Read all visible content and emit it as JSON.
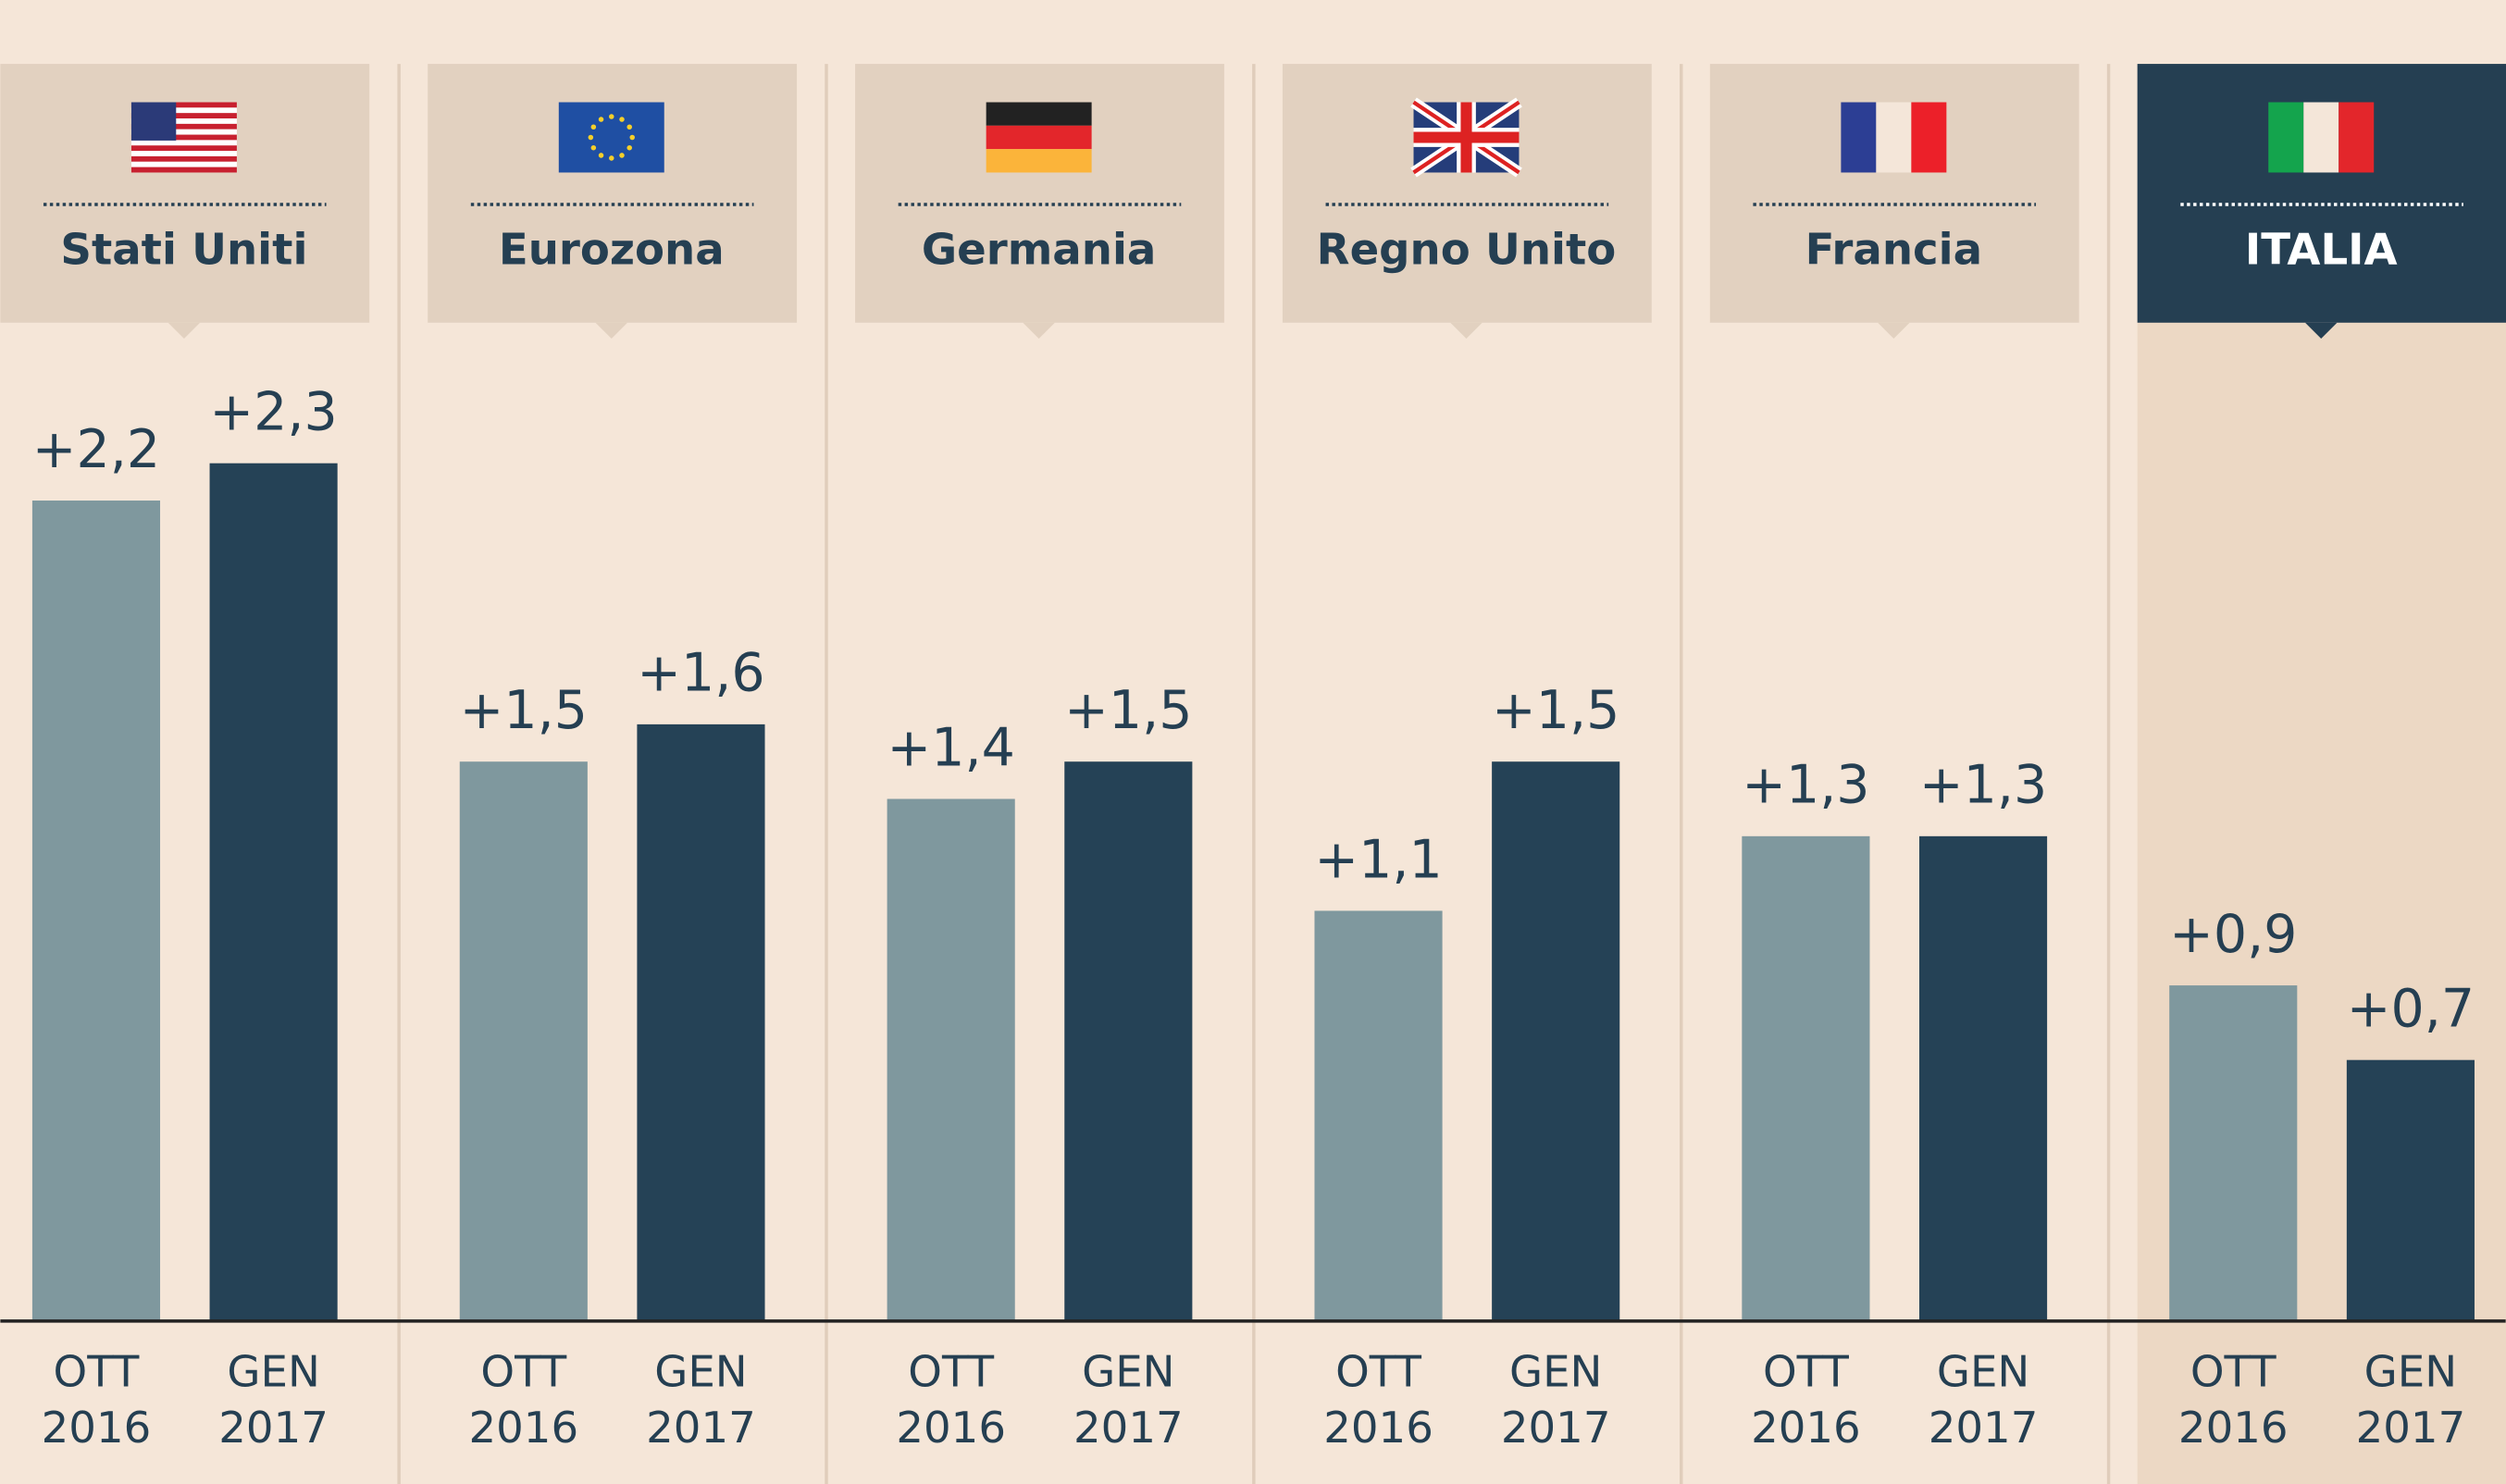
{
  "chart_data": {
    "type": "grouped-bar",
    "categories": [
      "Stati Uniti",
      "Eurozona",
      "Germania",
      "Regno Unito",
      "Francia",
      "ITALIA"
    ],
    "highlight_category": "ITALIA",
    "series": [
      {
        "name": "OTT 2016",
        "color": "#7f989e",
        "values": [
          2.2,
          1.5,
          1.4,
          1.1,
          1.3,
          0.9
        ],
        "value_labels": [
          "+2,2",
          "+1,5",
          "+1,4",
          "+1,1",
          "+1,3",
          "+0,9"
        ]
      },
      {
        "name": "GEN 2017",
        "color": "#254256",
        "values": [
          2.3,
          1.6,
          1.5,
          1.5,
          1.3,
          0.7
        ],
        "value_labels": [
          "+2,3",
          "+1,6",
          "+1,5",
          "+1,5",
          "+1,3",
          "+0,7"
        ]
      }
    ]
  }
}
